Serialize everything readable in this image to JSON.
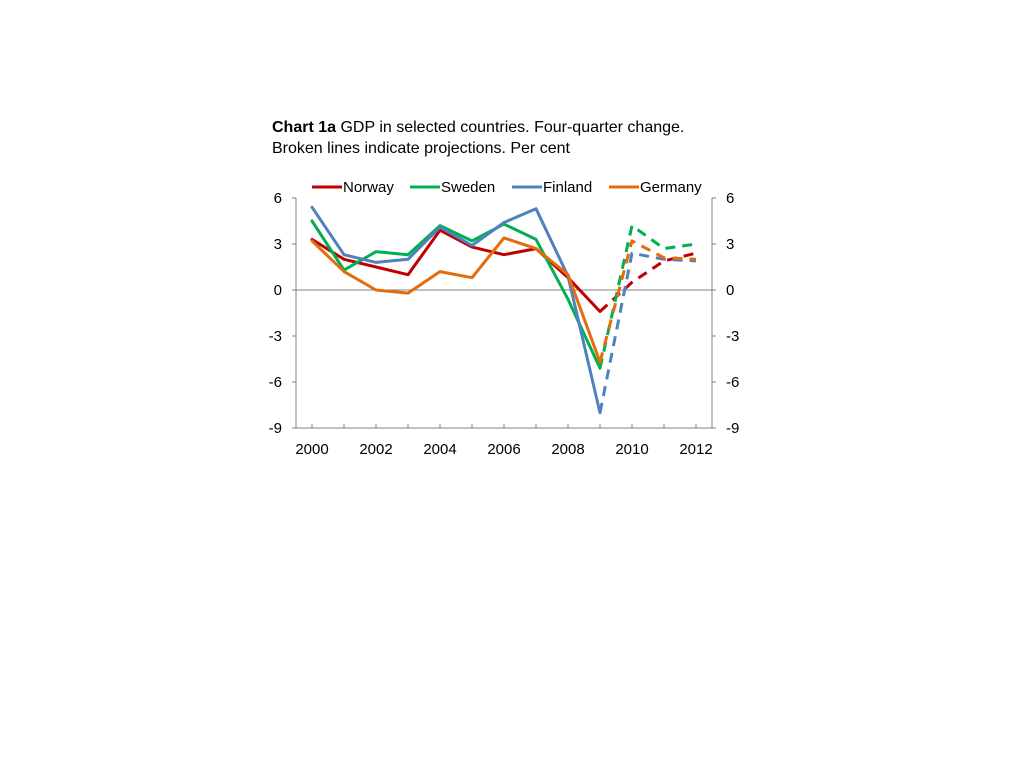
{
  "title": {
    "prefix": "Chart 1a",
    "text": "GDP in selected countries. Four-quarter change. Broken lines indicate projections. Per cent"
  },
  "chart_data": {
    "type": "line",
    "title": "Chart 1a GDP in selected countries. Four-quarter change. Broken lines indicate projections. Per cent",
    "xlabel": "",
    "ylabel": "",
    "x_ticks": [
      "2000",
      "2002",
      "2004",
      "2006",
      "2008",
      "2010",
      "2012"
    ],
    "y_ticks": [
      "6",
      "3",
      "0",
      "-3",
      "-6",
      "-9"
    ],
    "xlim": [
      2000,
      2012.6
    ],
    "ylim": [
      -9,
      6
    ],
    "legend_position": "top",
    "grid": false,
    "projection_note": "Broken lines indicate projections",
    "series": [
      {
        "name": "Norway",
        "color": "#c00000",
        "actual": [
          [
            2000,
            3.3
          ],
          [
            2001,
            2.0
          ],
          [
            2002,
            1.5
          ],
          [
            2003,
            1.0
          ],
          [
            2004,
            3.9
          ],
          [
            2005,
            2.8
          ],
          [
            2006,
            2.3
          ],
          [
            2007,
            2.7
          ],
          [
            2008,
            0.8
          ],
          [
            2009,
            -1.4
          ]
        ],
        "projected": [
          [
            2009,
            -1.4
          ],
          [
            2010,
            0.5
          ],
          [
            2011,
            1.9
          ],
          [
            2012,
            2.4
          ]
        ]
      },
      {
        "name": "Sweden",
        "color": "#00b050",
        "actual": [
          [
            2000,
            4.5
          ],
          [
            2001,
            1.3
          ],
          [
            2002,
            2.5
          ],
          [
            2003,
            2.3
          ],
          [
            2004,
            4.2
          ],
          [
            2005,
            3.2
          ],
          [
            2006,
            4.3
          ],
          [
            2007,
            3.3
          ],
          [
            2008,
            -0.6
          ],
          [
            2009,
            -5.1
          ]
        ],
        "projected": [
          [
            2009,
            -5.1
          ],
          [
            2010,
            4.2
          ],
          [
            2011,
            2.7
          ],
          [
            2012,
            3.0
          ]
        ]
      },
      {
        "name": "Finland",
        "color": "#4f81bd",
        "actual": [
          [
            2000,
            5.4
          ],
          [
            2001,
            2.3
          ],
          [
            2002,
            1.8
          ],
          [
            2003,
            2.0
          ],
          [
            2004,
            4.1
          ],
          [
            2005,
            2.9
          ],
          [
            2006,
            4.4
          ],
          [
            2007,
            5.3
          ],
          [
            2008,
            0.9
          ],
          [
            2009,
            -8.0
          ]
        ],
        "projected": [
          [
            2009,
            -8.0
          ],
          [
            2010,
            2.4
          ],
          [
            2011,
            2.0
          ],
          [
            2012,
            1.9
          ]
        ]
      },
      {
        "name": "Germany",
        "color": "#e46c0a",
        "actual": [
          [
            2000,
            3.2
          ],
          [
            2001,
            1.2
          ],
          [
            2002,
            0.0
          ],
          [
            2003,
            -0.2
          ],
          [
            2004,
            1.2
          ],
          [
            2005,
            0.8
          ],
          [
            2006,
            3.4
          ],
          [
            2007,
            2.7
          ],
          [
            2008,
            1.0
          ],
          [
            2009,
            -4.7
          ]
        ],
        "projected": [
          [
            2009,
            -4.7
          ],
          [
            2010,
            3.2
          ],
          [
            2011,
            2.1
          ],
          [
            2012,
            2.0
          ]
        ]
      }
    ]
  }
}
